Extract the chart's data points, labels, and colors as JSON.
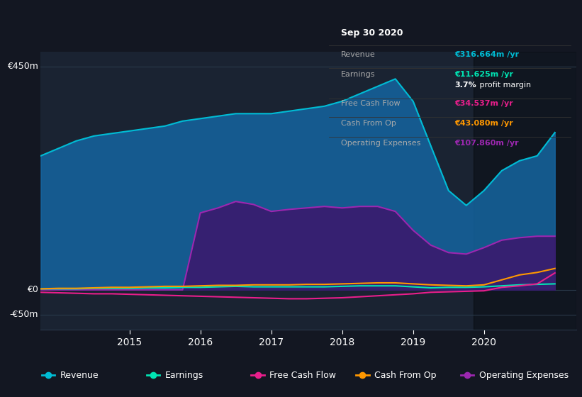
{
  "bg_color": "#131722",
  "plot_bg": "#1a2332",
  "grid_color": "#2a3a4a",
  "years": [
    2013.75,
    2014.0,
    2014.25,
    2014.5,
    2014.75,
    2015.0,
    2015.25,
    2015.5,
    2015.75,
    2016.0,
    2016.25,
    2016.5,
    2016.75,
    2017.0,
    2017.25,
    2017.5,
    2017.75,
    2018.0,
    2018.25,
    2018.5,
    2018.75,
    2019.0,
    2019.25,
    2019.5,
    2019.75,
    2020.0,
    2020.25,
    2020.5,
    2020.75,
    2021.0
  ],
  "revenue": [
    270,
    285,
    300,
    310,
    315,
    320,
    325,
    330,
    340,
    345,
    350,
    355,
    355,
    355,
    360,
    365,
    370,
    380,
    395,
    410,
    425,
    380,
    290,
    200,
    170,
    200,
    240,
    260,
    270,
    317
  ],
  "operating_expenses": [
    0,
    0,
    0,
    0,
    0,
    0,
    0,
    0,
    0,
    155,
    165,
    178,
    172,
    158,
    162,
    165,
    168,
    165,
    168,
    168,
    158,
    120,
    90,
    75,
    72,
    85,
    100,
    105,
    108,
    108
  ],
  "earnings": [
    2,
    2,
    2,
    3,
    3,
    3,
    4,
    4,
    5,
    5,
    6,
    7,
    6,
    6,
    6,
    6,
    6,
    7,
    8,
    8,
    8,
    6,
    4,
    5,
    5,
    6,
    8,
    10,
    11,
    12
  ],
  "free_cash_flow": [
    -5,
    -6,
    -7,
    -8,
    -8,
    -9,
    -10,
    -11,
    -12,
    -13,
    -14,
    -15,
    -16,
    -17,
    -18,
    -18,
    -17,
    -16,
    -14,
    -12,
    -10,
    -8,
    -5,
    -4,
    -3,
    -2,
    5,
    8,
    12,
    34
  ],
  "cash_from_op": [
    2,
    3,
    3,
    4,
    5,
    5,
    6,
    7,
    7,
    8,
    9,
    9,
    10,
    10,
    10,
    11,
    11,
    12,
    13,
    14,
    14,
    12,
    10,
    9,
    8,
    10,
    20,
    30,
    35,
    43
  ],
  "revenue_color": "#00bcd4",
  "operating_expenses_color": "#9c27b0",
  "earnings_color": "#00e5b4",
  "free_cash_flow_color": "#e91e8c",
  "cash_from_op_color": "#ff9800",
  "revenue_fill": "#1565a0",
  "operating_expenses_fill": "#3a1a6e",
  "ylim_min": -80,
  "ylim_max": 480,
  "ylabel_top": "€450m",
  "ylabel_zero": "€0",
  "ylabel_bottom": "-€50m",
  "xtick_labels": [
    "2015",
    "2016",
    "2017",
    "2018",
    "2019",
    "2020"
  ],
  "xtick_positions": [
    2015.0,
    2016.0,
    2017.0,
    2018.0,
    2019.0,
    2020.0
  ],
  "highlight_x_start": 2019.85,
  "tooltip_title": "Sep 30 2020",
  "tooltip_rows": [
    {
      "label": "Revenue",
      "value": "€316.664m /yr",
      "value_color": "#00bcd4",
      "has_sep": true
    },
    {
      "label": "Earnings",
      "value": "€11.625m /yr",
      "value_color": "#00e5b4",
      "has_sep": false
    },
    {
      "label": "",
      "value": "3.7% profit margin",
      "value_color": "#ffffff",
      "has_sep": true,
      "value_bold": false,
      "indent": true
    },
    {
      "label": "Free Cash Flow",
      "value": "€34.537m /yr",
      "value_color": "#e91e8c",
      "has_sep": true
    },
    {
      "label": "Cash From Op",
      "value": "€43.080m /yr",
      "value_color": "#ff9800",
      "has_sep": true
    },
    {
      "label": "Operating Expenses",
      "value": "€107.860m /yr",
      "value_color": "#9c27b0",
      "has_sep": false
    }
  ],
  "legend_items": [
    {
      "label": "Revenue",
      "color": "#00bcd4"
    },
    {
      "label": "Earnings",
      "color": "#00e5b4"
    },
    {
      "label": "Free Cash Flow",
      "color": "#e91e8c"
    },
    {
      "label": "Cash From Op",
      "color": "#ff9800"
    },
    {
      "label": "Operating Expenses",
      "color": "#9c27b0"
    }
  ]
}
